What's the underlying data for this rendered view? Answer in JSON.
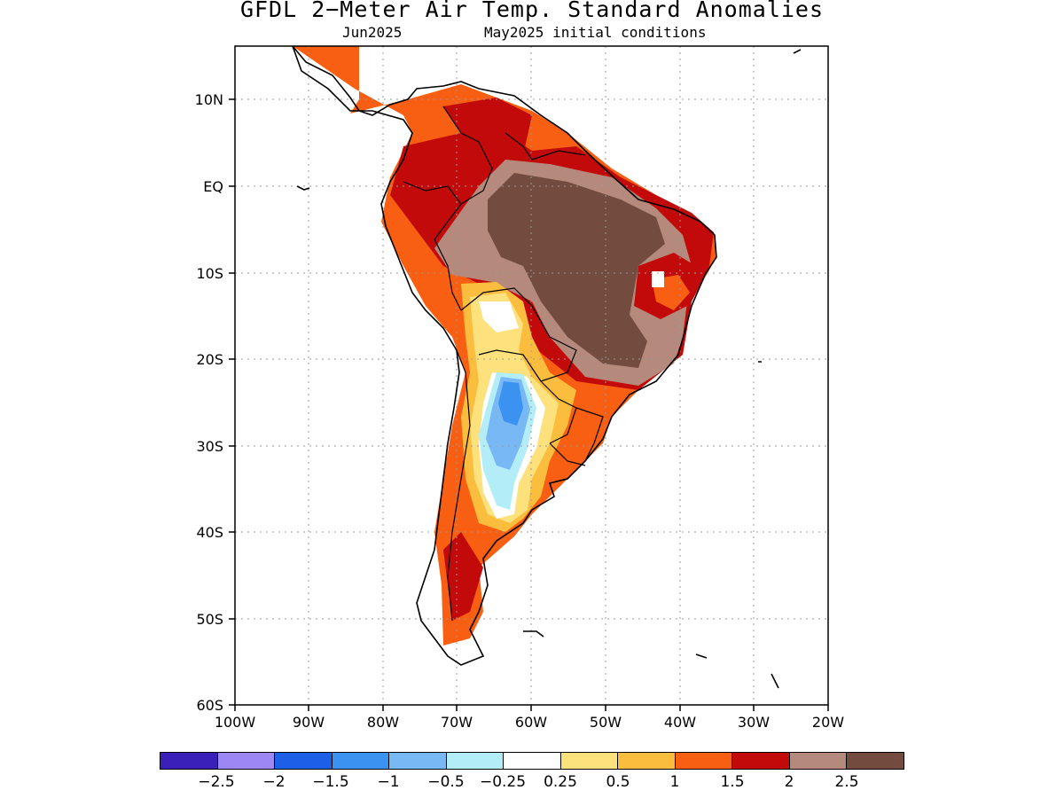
{
  "title": "GFDL 2−Meter Air Temp. Standard Anomalies",
  "subtitle_left": "Jun2025",
  "subtitle_right": "May2025 initial conditions",
  "lat_labels": [
    "10N",
    "EQ",
    "10S",
    "20S",
    "30S",
    "40S",
    "50S",
    "60S"
  ],
  "lon_labels": [
    "100W",
    "90W",
    "80W",
    "70W",
    "60W",
    "50W",
    "40W",
    "30W",
    "20W"
  ],
  "colorbar": {
    "colors": [
      "#3a1fb8",
      "#9d87f5",
      "#1e5fe8",
      "#3b92f0",
      "#78b8f5",
      "#b3edf7",
      "#ffffff",
      "#fde17c",
      "#fbbd3d",
      "#f85f12",
      "#c30a0a",
      "#b58a7c",
      "#744b3f"
    ],
    "labels": [
      "−2.5",
      "−2",
      "−1.5",
      "−1",
      "−0.5",
      "−0.25",
      "0.25",
      "0.5",
      "1",
      "1.5",
      "2",
      "2.5"
    ]
  }
}
